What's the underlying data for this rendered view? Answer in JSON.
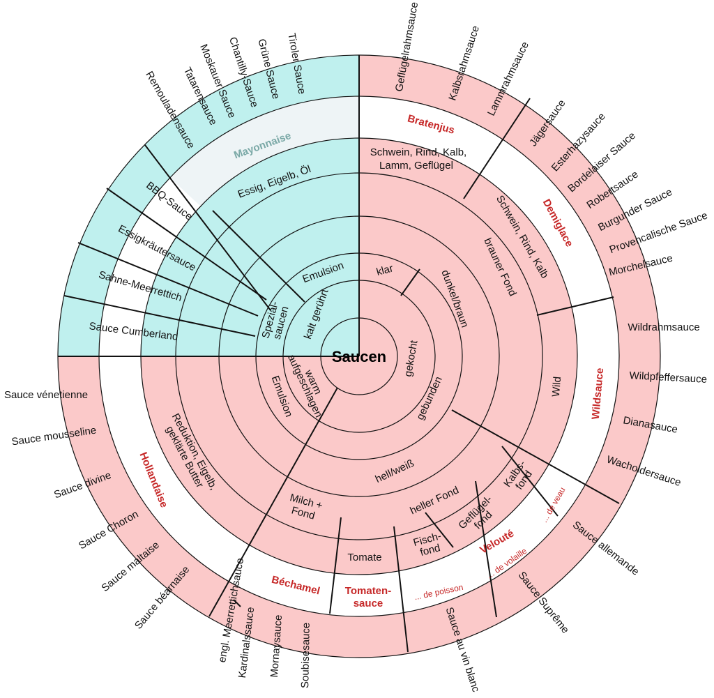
{
  "center": "Saucen",
  "colors": {
    "cold": "#bff0ee",
    "hot": "#fbc9c9",
    "white": "#ffffff",
    "label_white": "#eef4f6",
    "category": "#c62828"
  },
  "inner": {
    "kalt_geruehrt": "kalt gerührt",
    "gekocht": "gekocht",
    "warm_aufgeschlagen": "warm aufgeschlagen",
    "spezialsaucen": [
      "Spezial-",
      "saucen"
    ],
    "emulsion_cold": "Emulsion",
    "emulsion_warm": "Emulsion",
    "klar": "klar",
    "dunkelbraun": "dunkel/braun",
    "gebunden": "gebunden",
    "brauner_fond": "brauner Fond",
    "hell_weiss": "hell/weiß",
    "heller_fond": "heller Fond",
    "kalbsfond": [
      "Kalbs-",
      "fond"
    ],
    "gefluegelfond": [
      "Geflügel-",
      "fond"
    ],
    "fischfond": [
      "Fisch-",
      "fond"
    ],
    "tomate": "Tomate",
    "milch_fond": [
      "Milch +",
      "Fond"
    ],
    "reduktion": [
      "Reduktion, Eigelb,",
      "geklärte Butter"
    ],
    "essig_eigelb_oel": "Essig, Eigelb, Öl",
    "schwein_rind_kalb_lamm": [
      "Schwein, Rind, Kalb,",
      "Lamm, Geflügel"
    ],
    "schwein_rind_kalb": "Schwein, Rind, Kalb",
    "wild": "Wild"
  },
  "categories": {
    "mayonnaise": "Mayonnaise",
    "bratenjus": "Bratenjus",
    "demiglace": "Demiglace",
    "wildsauce": "Wildsauce",
    "veloute": "Velouté",
    "de_veau": "... de veau",
    "de_volaille": "... de volaille",
    "de_poisson": "... de poisson",
    "tomatensauce": [
      "Tomaten-",
      "sauce"
    ],
    "bechamel": "Béchamel",
    "hollandaise": "Hollandaise"
  },
  "cold_sauces": [
    "BBQ-Sauce",
    "Essigkräutersauce",
    "Sahne-Meerrettich",
    "Sauce Cumberland"
  ],
  "mayonnaise_sauces": [
    "Remouladensauce",
    "Tatarensauce",
    "Moskauer Sauce",
    "Chantilly-Sauce",
    "Grüne Sauce",
    "Tiroler Sauce"
  ],
  "bratenjus_sauces": [
    "Geflügelrahmsauce",
    "Kalbsrahmsauce",
    "Lammrahmsauce"
  ],
  "demiglace_sauces": [
    "Jägersauce",
    "Esterhazysauce",
    "Bordelaiser Sauce",
    "Robertsauce",
    "Burgunder Sauce",
    "Provencalische Sauce",
    "Morchelsauce"
  ],
  "wild_sauces": [
    "Wildrahmsauce",
    "Wildpfeffersauce",
    "Dianasauce",
    "Wacholdersauce"
  ],
  "veloute_sauces": [
    "Sauce allemande",
    "Sauce Suprême",
    "Sauce au vin blanc"
  ],
  "bechamel_sauces": [
    "engl. Meerrettichsauce",
    "Kardinalssauce",
    "Mornaysauce",
    "Soubisesauce"
  ],
  "hollandaise_sauces": [
    "Sauce vénetienne",
    "Sauce mousseline",
    "Sauce divine",
    "Sauce Choron",
    "Sauce maltaise",
    "Sauce béarnaise"
  ]
}
